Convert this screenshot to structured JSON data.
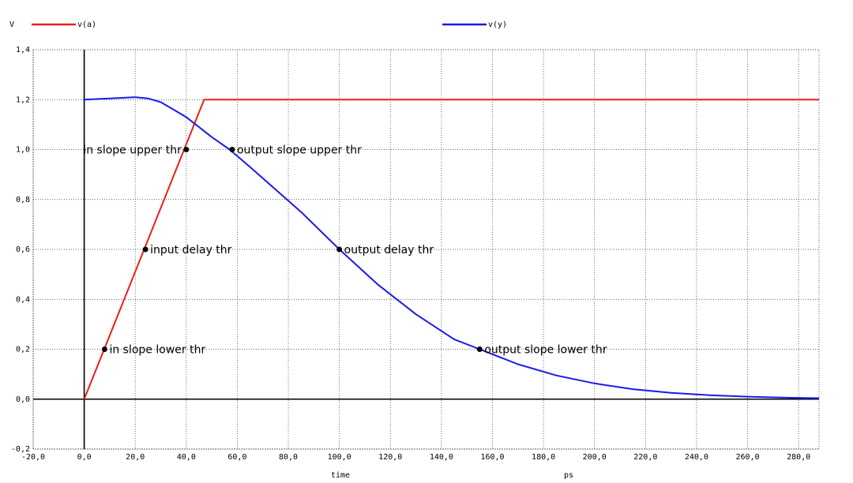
{
  "chart_data": {
    "type": "line",
    "y_unit": "V",
    "x_label": "time",
    "x_unit": "ps",
    "xlim": [
      -20,
      288
    ],
    "ylim": [
      -0.2,
      1.4
    ],
    "x_ticks": [
      "-20,0",
      "0,0",
      "20,0",
      "40,0",
      "60,0",
      "80,0",
      "100,0",
      "120,0",
      "140,0",
      "160,0",
      "180,0",
      "200,0",
      "220,0",
      "240,0",
      "260,0",
      "280,0"
    ],
    "y_ticks": [
      "-0,2",
      "0,0",
      "0,2",
      "0,4",
      "0,6",
      "0,8",
      "1,0",
      "1,2",
      "1,4"
    ],
    "grid": true,
    "legend_position": "top",
    "series": [
      {
        "name": "v(a)",
        "color": "#e8201a",
        "x": [
          0,
          47,
          288
        ],
        "y": [
          0,
          1.2,
          1.2
        ]
      },
      {
        "name": "v(y)",
        "color": "#1a1ae8",
        "x": [
          0,
          10,
          20,
          25,
          30,
          35,
          40,
          45,
          50,
          57,
          65,
          75,
          85,
          100,
          115,
          130,
          145,
          155,
          170,
          185,
          200,
          215,
          230,
          245,
          260,
          275,
          288
        ],
        "y": [
          1.2,
          1.205,
          1.21,
          1.205,
          1.19,
          1.16,
          1.13,
          1.09,
          1.05,
          1.0,
          0.93,
          0.84,
          0.75,
          0.6,
          0.46,
          0.34,
          0.24,
          0.2,
          0.14,
          0.095,
          0.063,
          0.04,
          0.025,
          0.016,
          0.01,
          0.006,
          0.004
        ]
      }
    ],
    "annotations": [
      {
        "text": "in slope upper thr",
        "x": 40,
        "y": 1.0,
        "side": "left"
      },
      {
        "text": "output slope upper thr",
        "x": 58,
        "y": 1.0,
        "side": "right"
      },
      {
        "text": "input delay thr",
        "x": 24,
        "y": 0.6,
        "side": "right"
      },
      {
        "text": "output delay thr",
        "x": 100,
        "y": 0.6,
        "side": "right"
      },
      {
        "text": "in slope lower thr",
        "x": 8,
        "y": 0.2,
        "side": "right"
      },
      {
        "text": "output slope lower thr",
        "x": 155,
        "y": 0.2,
        "side": "right"
      }
    ]
  }
}
